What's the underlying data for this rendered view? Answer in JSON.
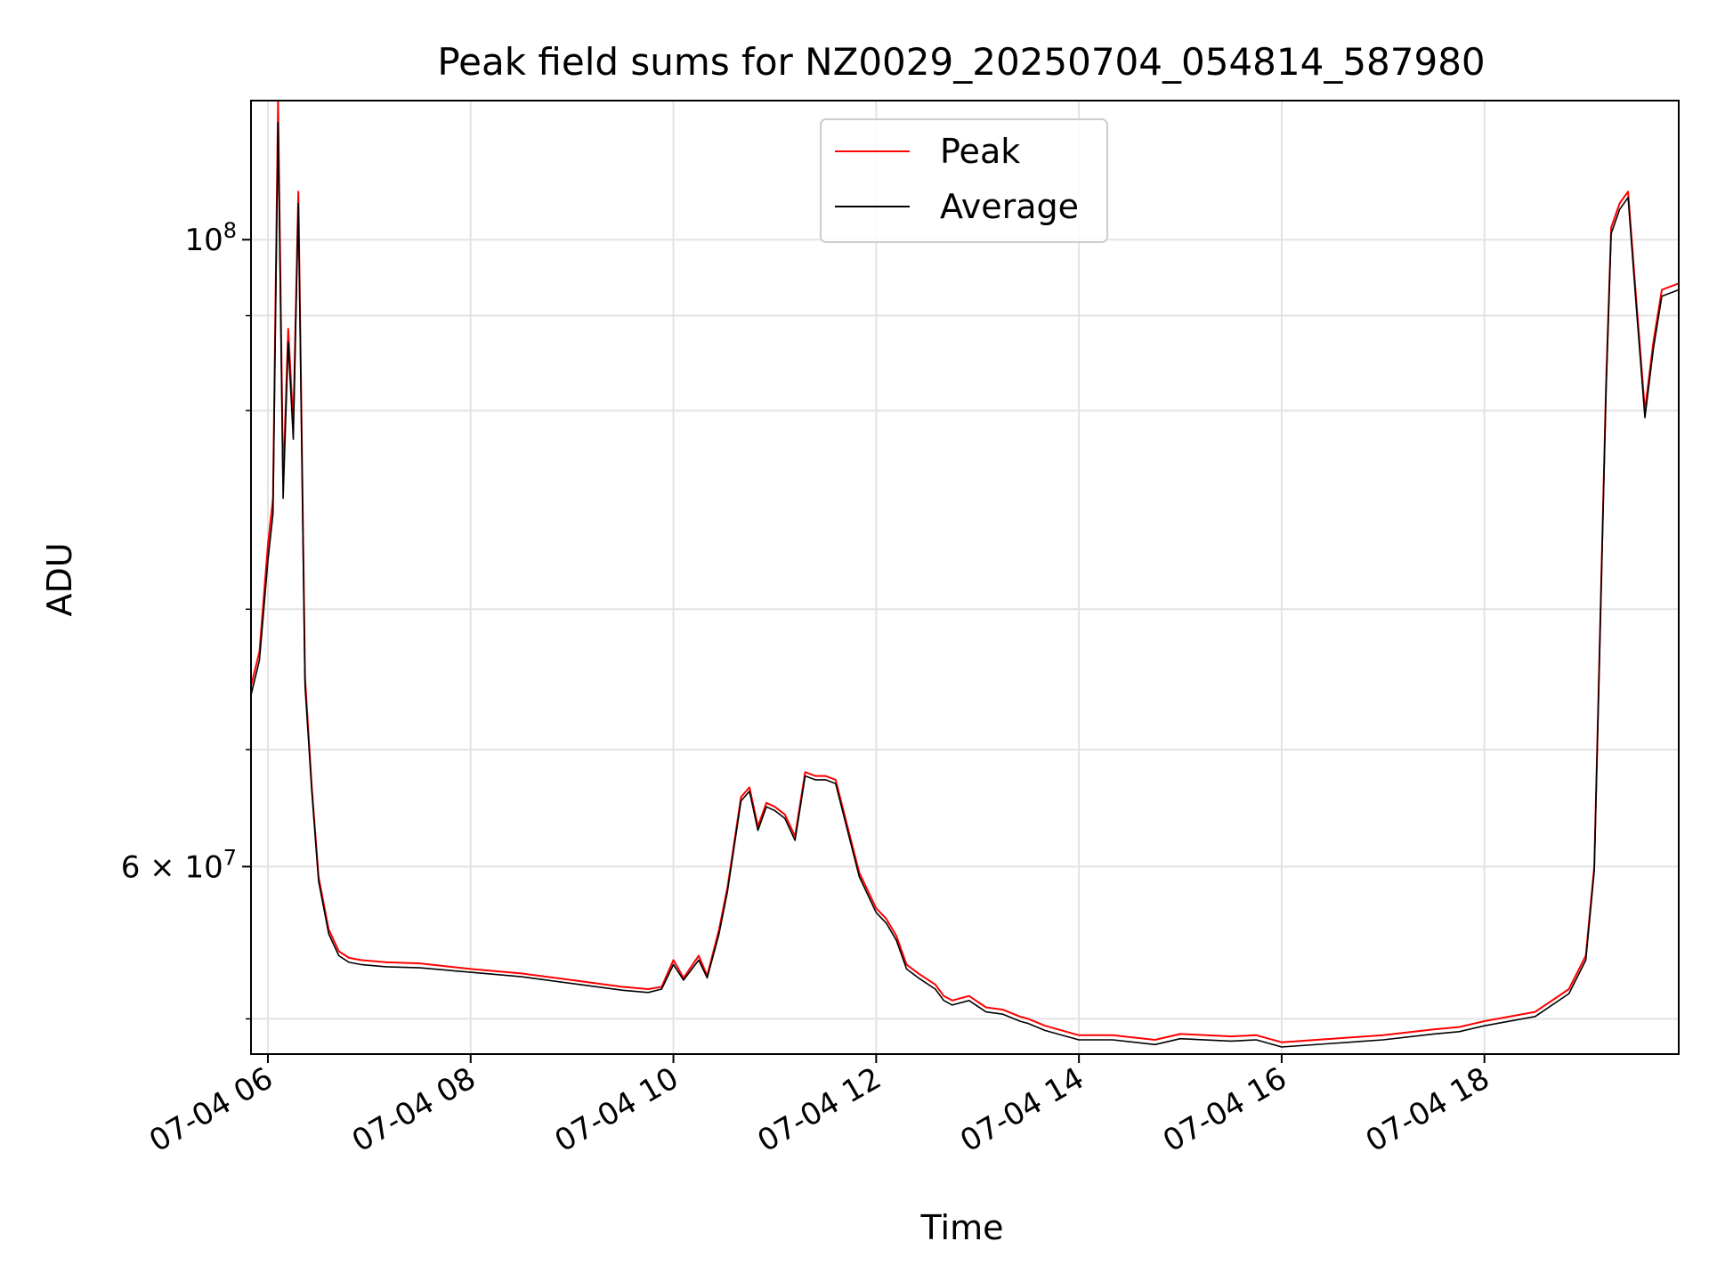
{
  "chart_data": {
    "type": "line",
    "title": "Peak field sums for NZ0029_20250704_054814_587980",
    "xlabel": "Time",
    "ylabel": "ADU",
    "x_unit": "datetime",
    "x_range": [
      "2025-07-04T05:50",
      "2025-07-04T19:55"
    ],
    "y_scale": "log",
    "ylim": [
      51500000,
      112000000
    ],
    "grid": true,
    "legend_position": "upper center",
    "x_ticks": [
      {
        "x": "2025-07-04T06:00",
        "label": "07-04 06"
      },
      {
        "x": "2025-07-04T08:00",
        "label": "07-04 08"
      },
      {
        "x": "2025-07-04T10:00",
        "label": "07-04 10"
      },
      {
        "x": "2025-07-04T12:00",
        "label": "07-04 12"
      },
      {
        "x": "2025-07-04T14:00",
        "label": "07-04 14"
      },
      {
        "x": "2025-07-04T16:00",
        "label": "07-04 16"
      },
      {
        "x": "2025-07-04T18:00",
        "label": "07-04 18"
      }
    ],
    "y_major_ticks": [
      {
        "value": 100000000,
        "base": "10",
        "exp": "8"
      },
      {
        "value": 60000000,
        "base": "6 × 10",
        "exp": "7"
      }
    ],
    "y_minor_ticks": [
      53000000,
      66000000,
      74000000,
      87000000,
      94000000
    ],
    "y_grid_values": [
      53000000,
      60000000,
      66000000,
      74000000,
      87000000,
      94000000,
      100000000
    ],
    "series": [
      {
        "name": "Peak",
        "color": "#ff0000",
        "x": [
          "2025-07-04T05:50",
          "2025-07-04T05:55",
          "2025-07-04T06:00",
          "2025-07-04T06:03",
          "2025-07-04T06:06",
          "2025-07-04T06:09",
          "2025-07-04T06:12",
          "2025-07-04T06:15",
          "2025-07-04T06:18",
          "2025-07-04T06:22",
          "2025-07-04T06:26",
          "2025-07-04T06:30",
          "2025-07-04T06:36",
          "2025-07-04T06:42",
          "2025-07-04T06:48",
          "2025-07-04T06:55",
          "2025-07-04T07:10",
          "2025-07-04T07:30",
          "2025-07-04T08:00",
          "2025-07-04T08:30",
          "2025-07-04T09:00",
          "2025-07-04T09:30",
          "2025-07-04T09:45",
          "2025-07-04T09:53",
          "2025-07-04T10:00",
          "2025-07-04T10:06",
          "2025-07-04T10:15",
          "2025-07-04T10:20",
          "2025-07-04T10:27",
          "2025-07-04T10:32",
          "2025-07-04T10:40",
          "2025-07-04T10:45",
          "2025-07-04T10:50",
          "2025-07-04T10:55",
          "2025-07-04T11:00",
          "2025-07-04T11:06",
          "2025-07-04T11:12",
          "2025-07-04T11:18",
          "2025-07-04T11:24",
          "2025-07-04T11:30",
          "2025-07-04T11:36",
          "2025-07-04T11:43",
          "2025-07-04T11:50",
          "2025-07-04T12:00",
          "2025-07-04T12:06",
          "2025-07-04T12:12",
          "2025-07-04T12:18",
          "2025-07-04T12:25",
          "2025-07-04T12:35",
          "2025-07-04T12:40",
          "2025-07-04T12:45",
          "2025-07-04T12:55",
          "2025-07-04T13:05",
          "2025-07-04T13:15",
          "2025-07-04T13:25",
          "2025-07-04T13:30",
          "2025-07-04T13:40",
          "2025-07-04T14:00",
          "2025-07-04T14:20",
          "2025-07-04T14:45",
          "2025-07-04T15:00",
          "2025-07-04T15:30",
          "2025-07-04T15:45",
          "2025-07-04T16:00",
          "2025-07-04T16:30",
          "2025-07-04T17:00",
          "2025-07-04T17:30",
          "2025-07-04T17:45",
          "2025-07-04T18:00",
          "2025-07-04T18:30",
          "2025-07-04T18:50",
          "2025-07-04T19:00",
          "2025-07-04T19:05",
          "2025-07-04T19:08",
          "2025-07-04T19:12",
          "2025-07-04T19:15",
          "2025-07-04T19:20",
          "2025-07-04T19:25",
          "2025-07-04T19:30",
          "2025-07-04T19:35",
          "2025-07-04T19:40",
          "2025-07-04T19:45",
          "2025-07-04T19:55"
        ],
        "values": [
          69500000,
          71500000,
          78000000,
          81000000,
          112000000,
          82000000,
          93000000,
          86000000,
          104000000,
          70000000,
          64000000,
          59500000,
          57000000,
          56000000,
          55700000,
          55600000,
          55500000,
          55450000,
          55200000,
          55000000,
          54700000,
          54400000,
          54300000,
          54400000,
          55600000,
          54800000,
          55800000,
          54900000,
          57000000,
          59000000,
          63500000,
          64000000,
          62000000,
          63200000,
          63000000,
          62600000,
          61500000,
          64800000,
          64600000,
          64600000,
          64400000,
          62000000,
          59700000,
          58000000,
          57500000,
          56700000,
          55400000,
          55000000,
          54500000,
          54000000,
          53800000,
          54000000,
          53500000,
          53400000,
          53100000,
          53000000,
          52700000,
          52300000,
          52300000,
          52100000,
          52350000,
          52250000,
          52300000,
          52000000,
          52150000,
          52300000,
          52550000,
          52650000,
          52900000,
          53300000,
          54300000,
          55800000,
          60000000,
          71000000,
          89000000,
          101000000,
          103000000,
          104000000,
          95000000,
          87000000,
          92000000,
          96000000,
          96500000
        ]
      },
      {
        "name": "Average",
        "color": "#000000",
        "x": [
          "2025-07-04T05:50",
          "2025-07-04T05:55",
          "2025-07-04T06:00",
          "2025-07-04T06:03",
          "2025-07-04T06:06",
          "2025-07-04T06:09",
          "2025-07-04T06:12",
          "2025-07-04T06:15",
          "2025-07-04T06:18",
          "2025-07-04T06:22",
          "2025-07-04T06:26",
          "2025-07-04T06:30",
          "2025-07-04T06:36",
          "2025-07-04T06:42",
          "2025-07-04T06:48",
          "2025-07-04T06:55",
          "2025-07-04T07:10",
          "2025-07-04T07:30",
          "2025-07-04T08:00",
          "2025-07-04T08:30",
          "2025-07-04T09:00",
          "2025-07-04T09:30",
          "2025-07-04T09:45",
          "2025-07-04T09:53",
          "2025-07-04T10:00",
          "2025-07-04T10:06",
          "2025-07-04T10:15",
          "2025-07-04T10:20",
          "2025-07-04T10:27",
          "2025-07-04T10:32",
          "2025-07-04T10:40",
          "2025-07-04T10:45",
          "2025-07-04T10:50",
          "2025-07-04T10:55",
          "2025-07-04T11:00",
          "2025-07-04T11:06",
          "2025-07-04T11:12",
          "2025-07-04T11:18",
          "2025-07-04T11:24",
          "2025-07-04T11:30",
          "2025-07-04T11:36",
          "2025-07-04T11:43",
          "2025-07-04T11:50",
          "2025-07-04T12:00",
          "2025-07-04T12:06",
          "2025-07-04T12:12",
          "2025-07-04T12:18",
          "2025-07-04T12:25",
          "2025-07-04T12:35",
          "2025-07-04T12:40",
          "2025-07-04T12:45",
          "2025-07-04T12:55",
          "2025-07-04T13:05",
          "2025-07-04T13:15",
          "2025-07-04T13:25",
          "2025-07-04T13:30",
          "2025-07-04T13:40",
          "2025-07-04T14:00",
          "2025-07-04T14:20",
          "2025-07-04T14:45",
          "2025-07-04T15:00",
          "2025-07-04T15:30",
          "2025-07-04T15:45",
          "2025-07-04T16:00",
          "2025-07-04T16:30",
          "2025-07-04T17:00",
          "2025-07-04T17:30",
          "2025-07-04T17:45",
          "2025-07-04T18:00",
          "2025-07-04T18:30",
          "2025-07-04T18:50",
          "2025-07-04T19:00",
          "2025-07-04T19:05",
          "2025-07-04T19:08",
          "2025-07-04T19:12",
          "2025-07-04T19:15",
          "2025-07-04T19:20",
          "2025-07-04T19:25",
          "2025-07-04T19:30",
          "2025-07-04T19:35",
          "2025-07-04T19:40",
          "2025-07-04T19:45",
          "2025-07-04T19:55"
        ],
        "values": [
          69000000,
          71000000,
          77000000,
          80000000,
          110000000,
          81000000,
          92000000,
          85000000,
          103000000,
          69500000,
          63800000,
          59300000,
          56800000,
          55800000,
          55500000,
          55400000,
          55300000,
          55250000,
          55050000,
          54850000,
          54550000,
          54250000,
          54150000,
          54300000,
          55400000,
          54700000,
          55600000,
          54800000,
          56800000,
          58800000,
          63300000,
          63800000,
          61800000,
          63000000,
          62800000,
          62400000,
          61300000,
          64600000,
          64400000,
          64400000,
          64200000,
          61800000,
          59500000,
          57800000,
          57300000,
          56500000,
          55200000,
          54800000,
          54300000,
          53800000,
          53600000,
          53800000,
          53300000,
          53200000,
          52900000,
          52800000,
          52500000,
          52100000,
          52100000,
          51900000,
          52150000,
          52050000,
          52100000,
          51800000,
          51950000,
          52100000,
          52350000,
          52450000,
          52700000,
          53100000,
          54100000,
          55600000,
          59800000,
          70800000,
          88500000,
          100500000,
          102500000,
          103500000,
          94500000,
          86500000,
          91500000,
          95500000,
          96000000
        ]
      }
    ]
  }
}
